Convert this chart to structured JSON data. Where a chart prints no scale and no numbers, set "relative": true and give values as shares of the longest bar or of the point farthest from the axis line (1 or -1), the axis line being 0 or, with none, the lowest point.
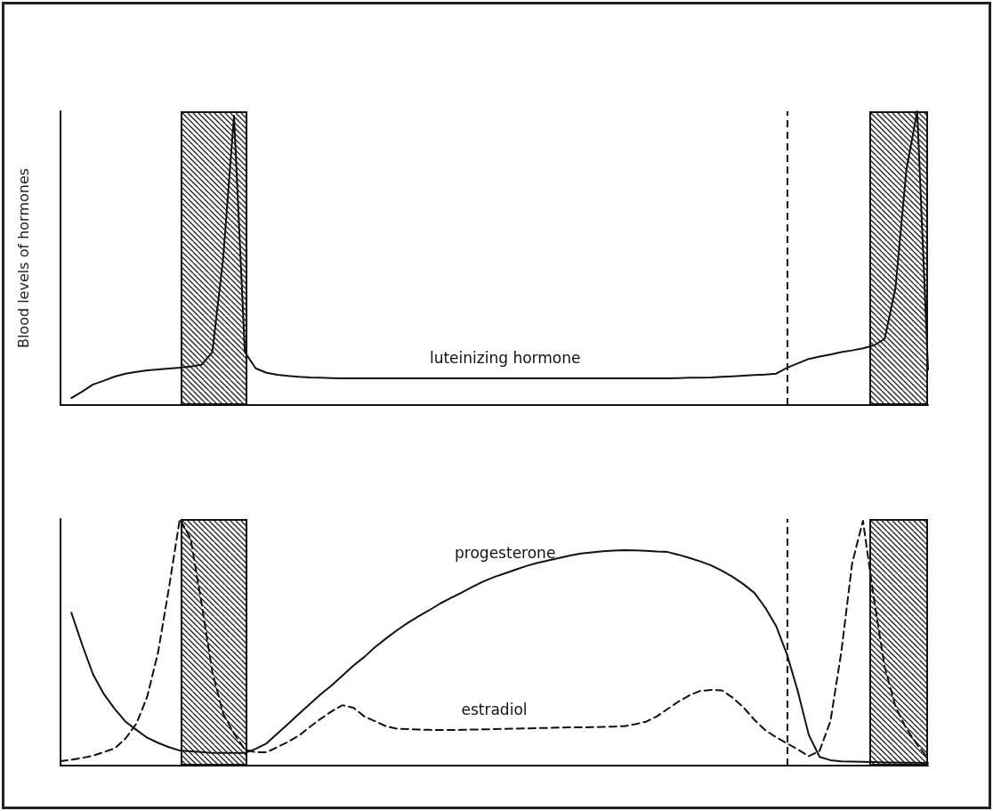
{
  "chart_data": [
    {
      "type": "line",
      "ylabel": "Blood levels of hormones",
      "relative": true,
      "grid": false,
      "legend": false,
      "marker": "none",
      "categories": [
        null,
        null,
        null,
        null,
        null,
        null,
        null,
        null,
        null,
        null,
        null,
        null,
        null,
        null,
        null,
        null,
        null,
        null,
        null,
        null,
        null,
        null,
        null,
        null,
        null,
        null,
        null,
        null,
        null,
        null,
        null,
        null,
        null,
        null,
        null,
        null,
        null,
        null,
        null,
        null,
        null,
        null,
        null,
        null,
        null,
        null,
        null,
        null,
        null,
        null,
        null,
        null,
        null,
        null,
        null,
        null,
        null,
        null,
        null,
        null,
        null,
        null,
        null,
        null,
        null,
        null,
        null,
        null,
        null,
        null,
        null,
        null,
        null,
        null,
        null,
        null,
        null,
        null,
        null,
        null,
        null
      ],
      "series": [
        {
          "name": "luteinizing hormone",
          "color": "#111111",
          "line_style": "solid",
          "values": [
            null,
            0.024,
            0.046,
            0.07,
            0.083,
            0.097,
            0.107,
            0.113,
            0.118,
            0.121,
            0.124,
            0.127,
            0.131,
            0.137,
            0.18,
            0.5,
            0.985,
            0.18,
            0.125,
            0.11,
            0.103,
            0.099,
            0.096,
            0.094,
            0.093,
            0.092,
            0.091,
            0.091,
            0.091,
            0.091,
            0.091,
            0.091,
            0.091,
            0.091,
            0.091,
            0.091,
            0.091,
            0.091,
            0.091,
            0.091,
            0.091,
            0.091,
            0.091,
            0.091,
            0.091,
            0.091,
            0.091,
            0.091,
            0.091,
            0.091,
            0.091,
            0.091,
            0.091,
            0.091,
            0.091,
            0.091,
            0.091,
            0.092,
            0.093,
            0.093,
            0.094,
            0.096,
            0.098,
            0.1,
            0.102,
            0.104,
            0.107,
            0.127,
            0.142,
            0.157,
            0.165,
            0.172,
            0.18,
            0.186,
            0.193,
            0.203,
            0.225,
            0.4,
            0.8,
            1,
            0.121
          ]
        }
      ]
    },
    {
      "type": "line",
      "relative": true,
      "grid": false,
      "legend": false,
      "marker": "none",
      "categories": [
        null,
        null,
        null,
        null,
        null,
        null,
        null,
        null,
        null,
        null,
        null,
        null,
        null,
        null,
        null,
        null,
        null,
        null,
        null,
        null,
        null,
        null,
        null,
        null,
        null,
        null,
        null,
        null,
        null,
        null,
        null,
        null,
        null,
        null,
        null,
        null,
        null,
        null,
        null,
        null,
        null,
        null,
        null,
        null,
        null,
        null,
        null,
        null,
        null,
        null,
        null,
        null,
        null,
        null,
        null,
        null,
        null,
        null,
        null,
        null,
        null,
        null,
        null,
        null,
        null,
        null,
        null,
        null,
        null,
        null,
        null,
        null,
        null,
        null,
        null,
        null,
        null,
        null,
        null,
        null,
        null
      ],
      "series": [
        {
          "name": "progesterone",
          "color": "#111111",
          "line_style": "solid",
          "values": [
            null,
            0.62,
            0.49,
            0.37,
            0.29,
            0.23,
            0.178,
            0.145,
            0.113,
            0.092,
            0.075,
            0.061,
            0.058,
            0.055,
            0.051,
            0.051,
            0.051,
            0.051,
            0.068,
            0.09,
            0.13,
            0.17,
            0.21,
            0.25,
            0.29,
            0.325,
            0.365,
            0.405,
            0.44,
            0.48,
            0.515,
            0.548,
            0.578,
            0.605,
            0.63,
            0.657,
            0.68,
            0.702,
            0.725,
            0.747,
            0.765,
            0.78,
            0.795,
            0.81,
            0.822,
            0.832,
            0.842,
            0.852,
            0.86,
            0.865,
            0.869,
            0.872,
            0.874,
            0.873,
            0.871,
            0.868,
            0.866,
            0.855,
            0.842,
            0.828,
            0.812,
            0.79,
            0.765,
            0.735,
            0.7,
            0.64,
            0.565,
            0.45,
            0.3,
            0.125,
            0.035,
            0.022,
            0.017,
            0.016,
            0.015,
            0.014,
            0.013,
            0.013,
            0.012,
            0.012,
            0.011
          ]
        },
        {
          "name": "estradiol",
          "color": "#111111",
          "line_style": "dashed",
          "values": [
            0.018,
            0.024,
            0.031,
            0.04,
            0.055,
            0.07,
            0.11,
            0.17,
            0.28,
            0.46,
            0.72,
            1,
            0.92,
            0.66,
            0.38,
            0.21,
            0.13,
            0.065,
            0.054,
            0.054,
            0.075,
            0.097,
            0.122,
            0.157,
            0.19,
            0.22,
            0.245,
            0.235,
            0.2,
            0.18,
            0.16,
            0.15,
            0.148,
            0.146,
            0.145,
            0.144,
            0.144,
            0.145,
            0.146,
            0.147,
            0.148,
            0.149,
            0.15,
            0.151,
            0.152,
            0.153,
            0.154,
            0.155,
            0.155,
            0.156,
            0.157,
            0.158,
            0.16,
            0.168,
            0.178,
            0.2,
            0.23,
            0.26,
            0.285,
            0.303,
            0.307,
            0.305,
            0.275,
            0.235,
            0.185,
            0.143,
            0.115,
            0.09,
            0.065,
            0.038,
            0.06,
            0.18,
            0.46,
            0.82,
            0.993,
            0.68,
            0.4,
            0.24,
            0.15,
            0.085,
            0.03
          ]
        }
      ]
    }
  ]
}
